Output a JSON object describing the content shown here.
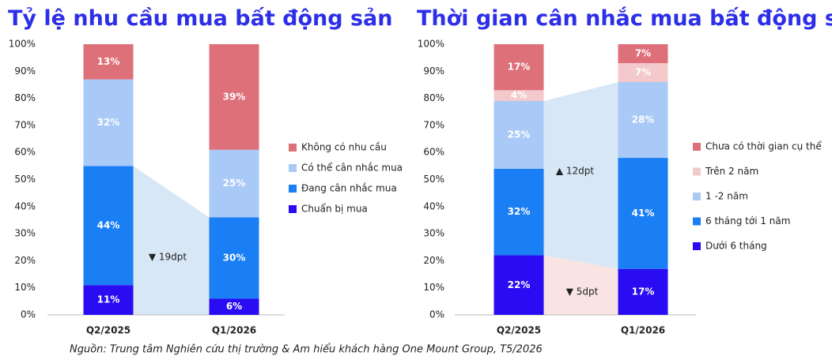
{
  "chart_data": [
    {
      "type": "stacked_bar",
      "title": "Tỷ lệ nhu cầu mua bất động sản",
      "categories": [
        "Q2/2025",
        "Q1/2026"
      ],
      "series": [
        {
          "name": "Chuẩn bị mua",
          "color": "#2a0cf2",
          "values": [
            11,
            6
          ],
          "value_labels": [
            "11%",
            "6%"
          ]
        },
        {
          "name": "Đang cân nhắc mua",
          "color": "#1a7ef5",
          "values": [
            44,
            30
          ],
          "value_labels": [
            "44%",
            "30%"
          ]
        },
        {
          "name": "Có thể cân nhắc mua",
          "color": "#a9c9f7",
          "values": [
            32,
            25
          ],
          "value_labels": [
            "32%",
            "25%"
          ]
        },
        {
          "name": "Không có nhu cầu",
          "color": "#de7079",
          "values": [
            13,
            39
          ],
          "value_labels": [
            "13%",
            "39%"
          ]
        }
      ],
      "ylim": [
        0,
        100
      ],
      "yticks": [
        {
          "value": 0,
          "label": "0%"
        },
        {
          "value": 10,
          "label": "10%"
        },
        {
          "value": 20,
          "label": "20%"
        },
        {
          "value": 30,
          "label": "30%"
        },
        {
          "value": 40,
          "label": "40%"
        },
        {
          "value": 50,
          "label": "50%"
        },
        {
          "value": 60,
          "label": "60%"
        },
        {
          "value": 70,
          "label": "70%"
        },
        {
          "value": 80,
          "label": "80%"
        },
        {
          "value": 90,
          "label": "90%"
        },
        {
          "value": 100,
          "label": "100%"
        }
      ],
      "annotations": [
        "▼ 19dpt"
      ],
      "legend": "right"
    },
    {
      "type": "stacked_bar",
      "title": "Thời gian cân nhắc mua bất động sản",
      "categories": [
        "Q2/2025",
        "Q1/2026"
      ],
      "series": [
        {
          "name": "Dưới 6 tháng",
          "color": "#2a0cf2",
          "values": [
            22,
            17
          ],
          "value_labels": [
            "22%",
            "17%"
          ]
        },
        {
          "name": "6 tháng tới 1 năm",
          "color": "#1a7ef5",
          "values": [
            32,
            41
          ],
          "value_labels": [
            "32%",
            "41%"
          ]
        },
        {
          "name": "1 -2 năm",
          "color": "#a9c9f7",
          "values": [
            25,
            28
          ],
          "value_labels": [
            "25%",
            "28%"
          ]
        },
        {
          "name": "Trên 2 năm",
          "color": "#f3c9cc",
          "values": [
            4,
            7
          ],
          "value_labels": [
            "4%",
            "7%"
          ]
        },
        {
          "name": "Chưa có thời gian cụ thể",
          "color": "#de7079",
          "values": [
            17,
            7
          ],
          "value_labels": [
            "17%",
            "7%"
          ]
        }
      ],
      "ylim": [
        0,
        100
      ],
      "yticks": [
        {
          "value": 0,
          "label": "0%"
        },
        {
          "value": 10,
          "label": "10%"
        },
        {
          "value": 20,
          "label": "20%"
        },
        {
          "value": 30,
          "label": "30%"
        },
        {
          "value": 40,
          "label": "40%"
        },
        {
          "value": 50,
          "label": "50%"
        },
        {
          "value": 60,
          "label": "60%"
        },
        {
          "value": 70,
          "label": "70%"
        },
        {
          "value": 80,
          "label": "80%"
        },
        {
          "value": 90,
          "label": "90%"
        },
        {
          "value": 100,
          "label": "100%"
        }
      ],
      "annotations": [
        "▲ 12dpt",
        "▼ 5dpt"
      ],
      "legend": "right"
    }
  ],
  "source": "Nguồn: Trung tâm Nghiên cứu thị trường & Am hiểu khách hàng One Mount Group, T5/2026"
}
